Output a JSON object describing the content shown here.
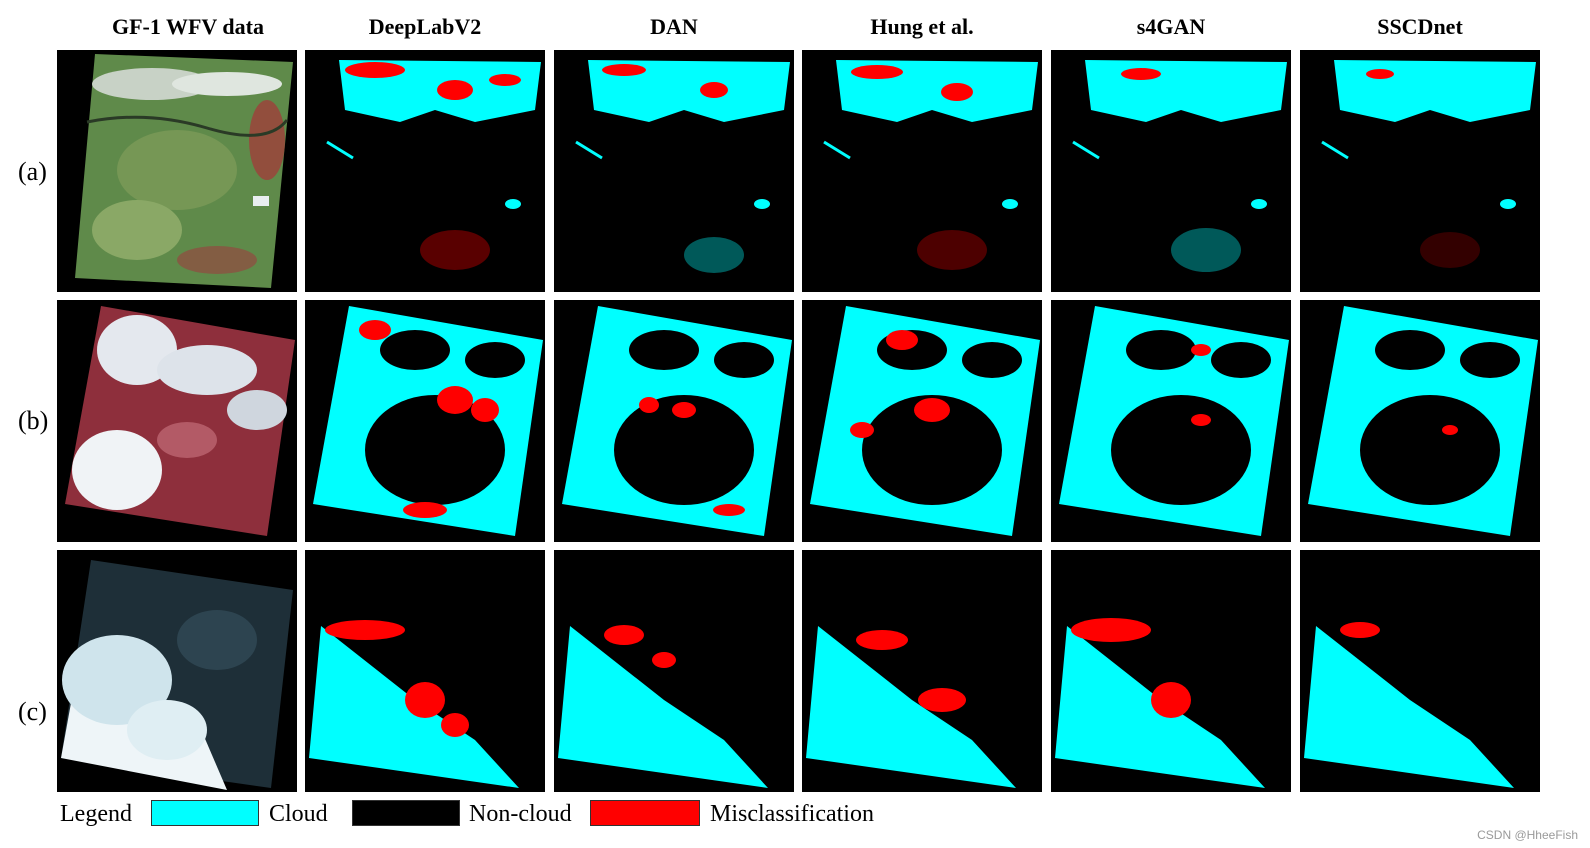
{
  "columns": [
    "GF-1 WFV data",
    "DeepLabV2",
    "DAN",
    "Hung et al.",
    "s4GAN",
    "SSCDnet"
  ],
  "rows": [
    "(a)",
    "(b)",
    "(c)"
  ],
  "legend": {
    "title": "Legend",
    "items": [
      {
        "label": "Cloud",
        "color": "#00ffff"
      },
      {
        "label": "Non-cloud",
        "color": "#000000"
      },
      {
        "label": "Misclassification",
        "color": "#ff0000"
      }
    ]
  },
  "watermark": "CSDN @HheeFish"
}
